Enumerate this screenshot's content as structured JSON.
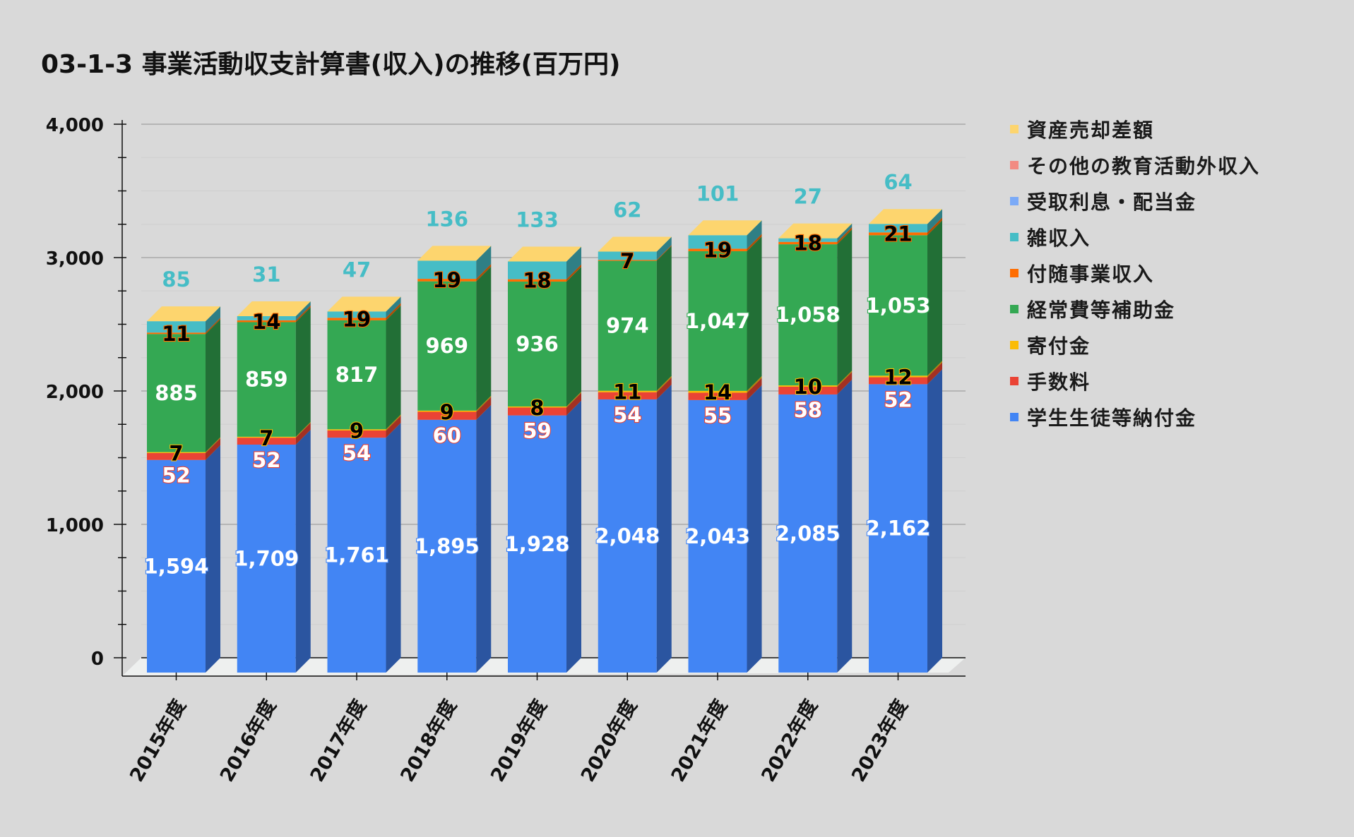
{
  "title": "03-1-3 事業活動収支計算書(収入)の推移(百万円)",
  "colors": {
    "background": "#d9d9d9",
    "floor": "#eef0ef"
  },
  "legend": [
    {
      "label": "資産売却差額",
      "color": "#fdd56e"
    },
    {
      "label": "その他の教育活動外収入",
      "color": "#f28b82"
    },
    {
      "label": "受取利息・配当金",
      "color": "#7baaf7"
    },
    {
      "label": "雑収入",
      "color": "#46bdc6"
    },
    {
      "label": "付随事業収入",
      "color": "#ff6d01"
    },
    {
      "label": "経常費等補助金",
      "color": "#34a853"
    },
    {
      "label": "寄付金",
      "color": "#fbbc04"
    },
    {
      "label": "手数料",
      "color": "#ea4335"
    },
    {
      "label": "学生生徒等納付金",
      "color": "#4285f4"
    }
  ],
  "chart_data": {
    "type": "bar",
    "stacked": true,
    "style": "3d",
    "title": "03-1-3 事業活動収支計算書(収入)の推移(百万円)",
    "xlabel": "",
    "ylabel": "",
    "ylim": [
      0,
      4000
    ],
    "yticks": [
      0,
      1000,
      2000,
      3000,
      4000
    ],
    "ytick_labels": [
      "0",
      "1,000",
      "2,000",
      "3,000",
      "4,000"
    ],
    "grid": true,
    "legend_position": "right",
    "categories": [
      "2015年度",
      "2016年度",
      "2017年度",
      "2018年度",
      "2019年度",
      "2020年度",
      "2021年度",
      "2022年度",
      "2023年度"
    ],
    "series": [
      {
        "name": "学生生徒等納付金",
        "color": "#4285f4",
        "side_color": "#2b55a0",
        "label_color": "#ffffff",
        "label_stroke": "#4285f4",
        "values": [
          1594,
          1709,
          1761,
          1895,
          1928,
          2048,
          2043,
          2085,
          2162
        ],
        "labels": [
          "1,594",
          "1,709",
          "1,761",
          "1,895",
          "1,928",
          "2,048",
          "2,043",
          "2,085",
          "2,162"
        ]
      },
      {
        "name": "手数料",
        "color": "#ea4335",
        "side_color": "#a33022",
        "label_color": "#ffffff",
        "label_stroke": "#ea4335",
        "values": [
          52,
          52,
          54,
          60,
          59,
          54,
          55,
          58,
          52
        ],
        "labels": [
          "52",
          "52",
          "54",
          "60",
          "59",
          "54",
          "55",
          "58",
          "52"
        ]
      },
      {
        "name": "寄付金",
        "color": "#fbbc04",
        "side_color": "#b08403",
        "label_color": "#000000",
        "label_stroke": "#fbbc04",
        "values": [
          7,
          7,
          9,
          9,
          8,
          11,
          14,
          10,
          12
        ],
        "labels": [
          "7",
          "7",
          "9",
          "9",
          "8",
          "11",
          "14",
          "10",
          "12"
        ]
      },
      {
        "name": "経常費等補助金",
        "color": "#34a853",
        "side_color": "#226f36",
        "label_color": "#ffffff",
        "label_stroke": "#34a853",
        "values": [
          885,
          859,
          817,
          969,
          936,
          974,
          1047,
          1058,
          1053
        ],
        "labels": [
          "885",
          "859",
          "817",
          "969",
          "936",
          "974",
          "1,047",
          "1,058",
          "1,053"
        ]
      },
      {
        "name": "付随事業収入",
        "color": "#ff6d01",
        "side_color": "#b34c01",
        "label_color": "#000000",
        "label_stroke": "#ff6d01",
        "values": [
          11,
          14,
          19,
          19,
          18,
          7,
          19,
          18,
          21
        ],
        "labels": [
          "11",
          "14",
          "19",
          "19",
          "18",
          "7",
          "19",
          "18",
          "21"
        ]
      },
      {
        "name": "雑収入",
        "color": "#46bdc6",
        "side_color": "#2f7f85",
        "label_color": "#46bdc6",
        "label_stroke": "none",
        "values": [
          85,
          31,
          47,
          136,
          133,
          62,
          101,
          27,
          64
        ],
        "labels": [
          "85",
          "31",
          "47",
          "136",
          "133",
          "62",
          "101",
          "27",
          "64"
        ]
      },
      {
        "name": "受取利息・配当金",
        "color": "#7baaf7",
        "side_color": "#5677ad",
        "values": [
          null,
          null,
          null,
          null,
          null,
          null,
          null,
          null,
          null
        ]
      },
      {
        "name": "その他の教育活動外収入",
        "color": "#f28b82",
        "side_color": "#a9615b",
        "values": [
          null,
          null,
          null,
          null,
          null,
          null,
          null,
          null,
          null
        ]
      },
      {
        "name": "資産売却差額",
        "color": "#fdd56e",
        "side_color": "#b1954d",
        "values": [
          null,
          null,
          null,
          null,
          null,
          null,
          null,
          null,
          null
        ]
      }
    ]
  }
}
